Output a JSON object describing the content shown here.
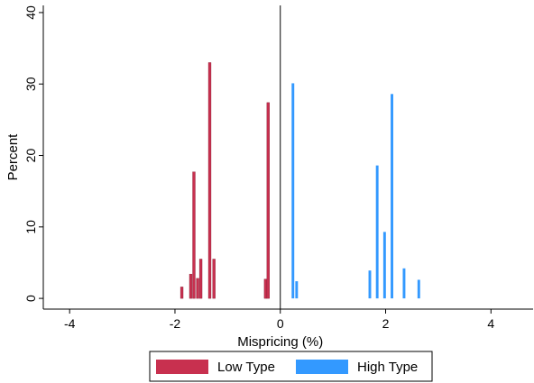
{
  "chart_data": {
    "type": "bar",
    "xlabel": "Mispricing (%)",
    "ylabel": "Percent",
    "xlim": [
      -4.5,
      4.8
    ],
    "ylim": [
      -1.5,
      41
    ],
    "xticks": [
      -4,
      -2,
      0,
      2,
      4
    ],
    "xtick_labels": [
      "-4",
      "-2",
      "0",
      "2",
      "4"
    ],
    "yticks": [
      0,
      10,
      20,
      30,
      40
    ],
    "ytick_labels": [
      "0",
      "10",
      "20",
      "30",
      "40"
    ],
    "grid": false,
    "reference_line_x": 0,
    "bar_width": 0.05,
    "legend": {
      "position": "bottom",
      "entries": [
        "Low Type",
        "High Type"
      ]
    },
    "series": [
      {
        "name": "Low Type",
        "color": "#c8304f",
        "bars": [
          {
            "x": -1.87,
            "y": 1.6
          },
          {
            "x": -1.7,
            "y": 3.4
          },
          {
            "x": -1.64,
            "y": 17.7
          },
          {
            "x": -1.57,
            "y": 2.8
          },
          {
            "x": -1.51,
            "y": 5.5
          },
          {
            "x": -1.34,
            "y": 33.0
          },
          {
            "x": -1.26,
            "y": 5.5
          },
          {
            "x": -0.28,
            "y": 2.7
          },
          {
            "x": -0.23,
            "y": 27.4
          }
        ]
      },
      {
        "name": "High Type",
        "color": "#3399ff",
        "bars": [
          {
            "x": 0.24,
            "y": 30.1
          },
          {
            "x": 0.31,
            "y": 2.4
          },
          {
            "x": 1.7,
            "y": 3.9
          },
          {
            "x": 1.84,
            "y": 18.6
          },
          {
            "x": 1.98,
            "y": 9.3
          },
          {
            "x": 2.12,
            "y": 28.6
          },
          {
            "x": 2.35,
            "y": 4.2
          },
          {
            "x": 2.63,
            "y": 2.6
          }
        ]
      }
    ]
  }
}
